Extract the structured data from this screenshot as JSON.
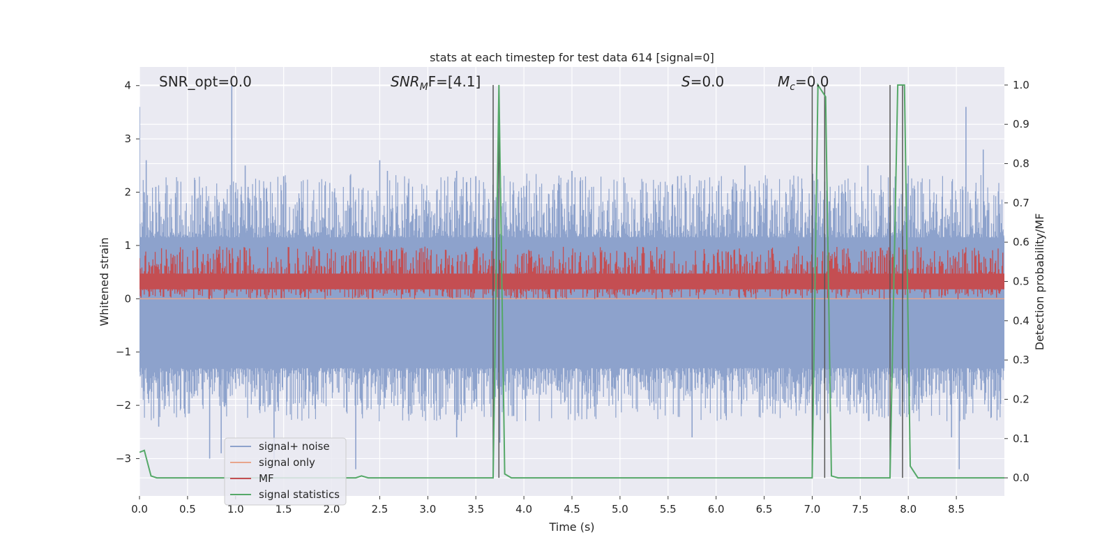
{
  "chart_data": {
    "type": "line",
    "title": "stats at each timestep for test data 614 [signal=0]",
    "xlabel": "Time (s)",
    "ylabel_left": "Whitened strain",
    "ylabel_right": "Detection probability/MF",
    "xlim": [
      0.0,
      9.0
    ],
    "ylim_left": [
      -3.7,
      4.35
    ],
    "ylim_right": [
      -0.046,
      1.046
    ],
    "x_ticks": [
      0.0,
      0.5,
      1.0,
      1.5,
      2.0,
      2.5,
      3.0,
      3.5,
      4.0,
      4.5,
      5.0,
      5.5,
      6.0,
      6.5,
      7.0,
      7.5,
      8.0,
      8.5
    ],
    "x_tick_labels": [
      "0.0",
      "0.5",
      "1.0",
      "1.5",
      "2.0",
      "2.5",
      "3.0",
      "3.5",
      "4.0",
      "4.5",
      "5.0",
      "5.5",
      "6.0",
      "6.5",
      "7.0",
      "7.5",
      "8.0",
      "8.5"
    ],
    "y_left_ticks": [
      -3,
      -2,
      -1,
      0,
      1,
      2,
      3,
      4
    ],
    "y_left_tick_labels": [
      "−3",
      "−2",
      "−1",
      "0",
      "1",
      "2",
      "3",
      "4"
    ],
    "y_right_ticks": [
      0.0,
      0.1,
      0.2,
      0.3,
      0.4,
      0.5,
      0.6,
      0.7,
      0.8,
      0.9,
      1.0
    ],
    "y_right_tick_labels": [
      "0.0",
      "0.1",
      "0.2",
      "0.3",
      "0.4",
      "0.5",
      "0.6",
      "0.7",
      "0.8",
      "0.9",
      "1.0"
    ],
    "grid": true,
    "annotations": {
      "snr_opt": "SNR_opt=0.0",
      "snr_mf_main": "SNR",
      "snr_mf_sub": "M",
      "snr_mf_rest": "F=[4.1]",
      "s_var": "S",
      "s_rest": "=0.0",
      "mc_var": "M",
      "mc_sub": "c",
      "mc_rest": "=0.0"
    },
    "legend": {
      "placement": "lower-left",
      "entries": [
        "signal+ noise",
        "signal only",
        "MF",
        "signal statistics"
      ]
    },
    "colors": {
      "signal_noise": "#8da2cc",
      "signal_only": "#e8a58c",
      "mf": "#c44e52",
      "signal_statistics": "#55a868",
      "vlines": "#555555",
      "axes_bg": "#eaeaf2",
      "grid": "#ffffff"
    },
    "series": [
      {
        "name": "signal+ noise",
        "axis": "left",
        "center": 0.0,
        "band": [
          -1.3,
          1.15
        ],
        "peaks": [
          {
            "x": 0.0,
            "y": 3.6
          },
          {
            "x": 0.05,
            "y": 2.0
          },
          {
            "x": 0.07,
            "y": 2.6
          },
          {
            "x": 0.17,
            "y": 2.1
          },
          {
            "x": 0.96,
            "y": 4.0
          },
          {
            "x": 0.93,
            "y": 1.6
          },
          {
            "x": 1.1,
            "y": 2.5
          },
          {
            "x": 1.13,
            "y": 2.1
          },
          {
            "x": 1.5,
            "y": 2.3
          },
          {
            "x": 2.5,
            "y": 2.6
          },
          {
            "x": 2.58,
            "y": 2.4
          },
          {
            "x": 3.3,
            "y": 2.4
          },
          {
            "x": 3.5,
            "y": 2.3
          },
          {
            "x": 4.5,
            "y": 2.4
          },
          {
            "x": 5.6,
            "y": 2.3
          },
          {
            "x": 6.3,
            "y": 2.5
          },
          {
            "x": 7.13,
            "y": 2.2
          },
          {
            "x": 7.58,
            "y": 2.5
          },
          {
            "x": 8.0,
            "y": 2.5
          },
          {
            "x": 8.6,
            "y": 3.6
          },
          {
            "x": 8.78,
            "y": 2.8
          },
          {
            "x": 0.2,
            "y": -2.4
          },
          {
            "x": 0.73,
            "y": -3.0
          },
          {
            "x": 0.85,
            "y": -2.9
          },
          {
            "x": 1.4,
            "y": -3.0
          },
          {
            "x": 2.25,
            "y": -3.2
          },
          {
            "x": 3.3,
            "y": -2.6
          },
          {
            "x": 3.75,
            "y": -2.7
          },
          {
            "x": 5.75,
            "y": -2.6
          },
          {
            "x": 8.45,
            "y": -2.6
          },
          {
            "x": 8.53,
            "y": -3.2
          }
        ]
      },
      {
        "name": "signal only",
        "axis": "left",
        "constant": 0.0
      },
      {
        "name": "MF",
        "axis": "right",
        "base": 0.5,
        "range": [
          0.455,
          0.59
        ]
      },
      {
        "name": "signal statistics",
        "axis": "right",
        "x": [
          0.0,
          0.05,
          0.12,
          0.18,
          2.25,
          2.31,
          2.38,
          3.68,
          3.74,
          3.8,
          3.87,
          7.0,
          7.06,
          7.14,
          7.2,
          7.27,
          7.81,
          7.89,
          7.96,
          8.02,
          8.1,
          9.0
        ],
        "y": [
          0.065,
          0.07,
          0.005,
          0.0,
          0.0,
          0.005,
          0.0,
          0.0,
          1.0,
          0.01,
          0.0,
          0.0,
          1.0,
          0.97,
          0.005,
          0.0,
          0.0,
          1.0,
          1.0,
          0.03,
          0.0,
          0.0
        ]
      }
    ],
    "vertical_lines": [
      3.68,
      3.74,
      7.0,
      7.13,
      7.81,
      7.94
    ]
  }
}
